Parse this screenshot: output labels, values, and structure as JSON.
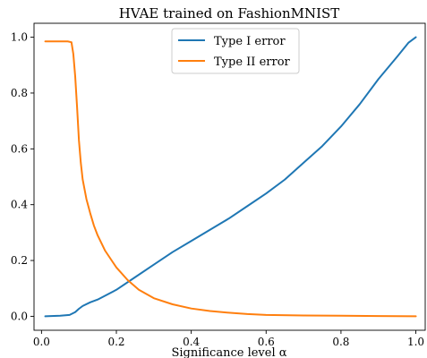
{
  "chart_data": {
    "type": "line",
    "title": "HVAE trained on FashionMNIST",
    "xlabel": "Significance level α",
    "ylabel": "",
    "xlim": [
      -0.02,
      1.025
    ],
    "ylim": [
      -0.05,
      1.05
    ],
    "xticks": [
      0.0,
      0.2,
      0.4,
      0.6,
      0.8,
      1.0
    ],
    "xtick_labels": [
      "0.0",
      "0.2",
      "0.4",
      "0.6",
      "0.8",
      "1.0"
    ],
    "yticks": [
      0.0,
      0.2,
      0.4,
      0.6,
      0.8,
      1.0
    ],
    "ytick_labels": [
      "0.0",
      "0.2",
      "0.4",
      "0.6",
      "0.8",
      "1.0"
    ],
    "grid": false,
    "legend_position": "top-center",
    "series": [
      {
        "name": "Type I error",
        "color": "#1f77b4",
        "x": [
          0.01,
          0.05,
          0.075,
          0.09,
          0.1,
          0.11,
          0.13,
          0.15,
          0.2,
          0.25,
          0.3,
          0.35,
          0.4,
          0.45,
          0.5,
          0.55,
          0.6,
          0.65,
          0.7,
          0.75,
          0.8,
          0.85,
          0.9,
          0.95,
          0.98,
          1.0
        ],
        "y": [
          0.0,
          0.002,
          0.005,
          0.015,
          0.027,
          0.037,
          0.05,
          0.06,
          0.095,
          0.14,
          0.185,
          0.23,
          0.27,
          0.31,
          0.35,
          0.395,
          0.44,
          0.49,
          0.55,
          0.61,
          0.68,
          0.76,
          0.85,
          0.93,
          0.98,
          1.0
        ]
      },
      {
        "name": "Type II error",
        "color": "#ff7f0e",
        "x": [
          0.01,
          0.03,
          0.05,
          0.07,
          0.08,
          0.085,
          0.09,
          0.095,
          0.1,
          0.105,
          0.11,
          0.12,
          0.13,
          0.14,
          0.15,
          0.17,
          0.2,
          0.23,
          0.26,
          0.3,
          0.35,
          0.4,
          0.45,
          0.5,
          0.55,
          0.6,
          0.7,
          0.8,
          0.9,
          1.0
        ],
        "y": [
          0.985,
          0.985,
          0.985,
          0.985,
          0.982,
          0.94,
          0.86,
          0.75,
          0.63,
          0.55,
          0.49,
          0.42,
          0.37,
          0.325,
          0.29,
          0.235,
          0.175,
          0.13,
          0.095,
          0.065,
          0.043,
          0.028,
          0.019,
          0.013,
          0.008,
          0.005,
          0.003,
          0.002,
          0.001,
          0.0
        ]
      }
    ]
  }
}
